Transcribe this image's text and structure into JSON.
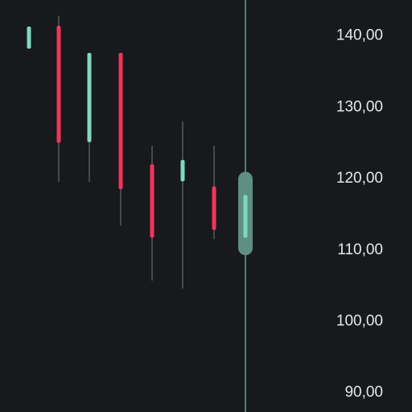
{
  "chart_data": {
    "type": "candlestick",
    "yaxis": {
      "side": "right",
      "range": [
        88,
        145
      ],
      "ticks": [
        {
          "value": 140,
          "label": "140,00"
        },
        {
          "value": 130,
          "label": "130,00"
        },
        {
          "value": 120,
          "label": "120,00"
        },
        {
          "value": 110,
          "label": "110,00"
        },
        {
          "value": 100,
          "label": "100,00"
        },
        {
          "value": 90,
          "label": "90,00"
        }
      ]
    },
    "grid": false,
    "colors": {
      "background": "#17191d",
      "up": "#7ed8c0",
      "down": "#f2355b",
      "wick": "#5a5d63",
      "crosshair": "#6fc4b0",
      "highlight": "#5e8f80",
      "tick_label": "#e6e7ea"
    },
    "candles": [
      {
        "open": 138.0,
        "close": 141.1,
        "high": 141.1,
        "low": 138.0,
        "direction": "up"
      },
      {
        "open": 141.2,
        "close": 124.8,
        "high": 142.6,
        "low": 119.3,
        "direction": "down"
      },
      {
        "open": 124.9,
        "close": 137.4,
        "high": 137.4,
        "low": 119.3,
        "direction": "up"
      },
      {
        "open": 137.4,
        "close": 118.3,
        "high": 137.4,
        "low": 113.2,
        "direction": "down"
      },
      {
        "open": 121.8,
        "close": 111.5,
        "high": 124.4,
        "low": 105.5,
        "direction": "down"
      },
      {
        "open": 119.4,
        "close": 122.4,
        "high": 127.8,
        "low": 104.4,
        "direction": "up"
      },
      {
        "open": 118.7,
        "close": 112.6,
        "high": 124.4,
        "low": 111.3,
        "direction": "down"
      },
      {
        "open": 111.5,
        "close": 117.5,
        "high": 120.3,
        "low": 109.5,
        "direction": "up",
        "highlighted": true
      }
    ]
  }
}
